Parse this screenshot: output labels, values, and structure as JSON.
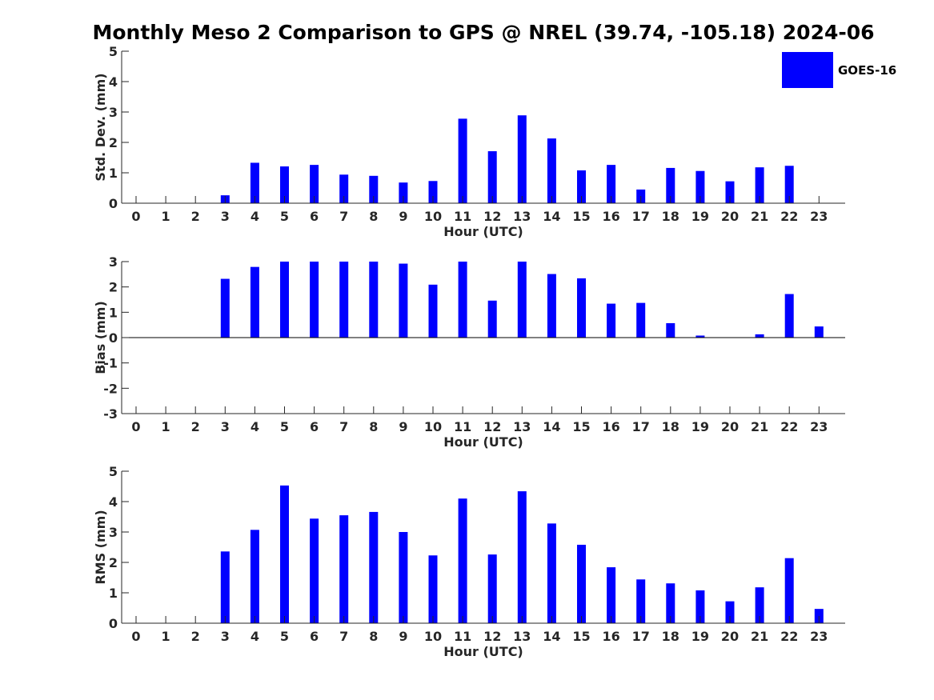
{
  "title": "Monthly Meso 2 Comparison to GPS @ NREL (39.74, -105.18) 2024-06",
  "colors": {
    "bar": "#0000ff",
    "axis": "#262626"
  },
  "legend": {
    "label": "GOES-16",
    "placement": "top-right"
  },
  "chart_data": [
    {
      "type": "bar",
      "name": "std-dev",
      "ylabel": "Std. Dev. (mm)",
      "xlabel": "Hour (UTC)",
      "ylim": [
        0,
        5
      ],
      "yticks": [
        0,
        1,
        2,
        3,
        4,
        5
      ],
      "categories": [
        "0",
        "1",
        "2",
        "3",
        "4",
        "5",
        "6",
        "7",
        "8",
        "9",
        "10",
        "11",
        "12",
        "13",
        "14",
        "15",
        "16",
        "17",
        "18",
        "19",
        "20",
        "21",
        "22",
        "23"
      ],
      "values": [
        0,
        0,
        0,
        0.26,
        1.33,
        1.21,
        1.26,
        0.94,
        0.9,
        0.68,
        0.73,
        2.78,
        1.71,
        2.89,
        2.13,
        1.08,
        1.26,
        0.45,
        1.16,
        1.06,
        0.72,
        1.18,
        1.23,
        0
      ]
    },
    {
      "type": "bar",
      "name": "bias",
      "ylabel": "Bias (mm)",
      "xlabel": "Hour (UTC)",
      "ylim": [
        -3,
        3
      ],
      "yticks": [
        -3,
        -2,
        -1,
        0,
        1,
        2,
        3
      ],
      "categories": [
        "0",
        "1",
        "2",
        "3",
        "4",
        "5",
        "6",
        "7",
        "8",
        "9",
        "10",
        "11",
        "12",
        "13",
        "14",
        "15",
        "16",
        "17",
        "18",
        "19",
        "20",
        "21",
        "22",
        "23"
      ],
      "values": [
        0,
        0,
        0,
        2.32,
        2.79,
        3.0,
        3.0,
        3.0,
        3.0,
        2.92,
        2.09,
        3.0,
        1.46,
        3.0,
        2.51,
        2.34,
        1.34,
        1.37,
        0.57,
        0.08,
        0,
        0.13,
        1.72,
        0.44
      ]
    },
    {
      "type": "bar",
      "name": "rms",
      "ylabel": "RMS (mm)",
      "xlabel": "Hour (UTC)",
      "ylim": [
        0,
        5
      ],
      "yticks": [
        0,
        1,
        2,
        3,
        4,
        5
      ],
      "categories": [
        "0",
        "1",
        "2",
        "3",
        "4",
        "5",
        "6",
        "7",
        "8",
        "9",
        "10",
        "11",
        "12",
        "13",
        "14",
        "15",
        "16",
        "17",
        "18",
        "19",
        "20",
        "21",
        "22",
        "23"
      ],
      "values": [
        0,
        0,
        0,
        2.36,
        3.07,
        4.53,
        3.44,
        3.55,
        3.66,
        3.0,
        2.23,
        4.1,
        2.26,
        4.34,
        3.28,
        2.58,
        1.84,
        1.44,
        1.31,
        1.08,
        0.72,
        1.18,
        2.14,
        0.47
      ]
    }
  ]
}
